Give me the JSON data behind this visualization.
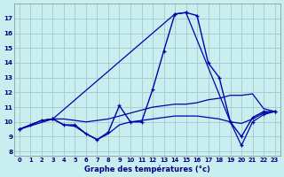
{
  "xlabel": "Graphe des températures (°c)",
  "bg_color": "#c8eef0",
  "grid_color": "#a8ced0",
  "line_color": "#0000aa",
  "x_ticks": [
    0,
    1,
    2,
    3,
    4,
    5,
    6,
    7,
    8,
    9,
    10,
    11,
    12,
    13,
    14,
    15,
    16,
    17,
    18,
    19,
    20,
    21,
    22,
    23
  ],
  "y_ticks": [
    8,
    9,
    10,
    11,
    12,
    13,
    14,
    15,
    16,
    17
  ],
  "xlim": [
    -0.5,
    23.5
  ],
  "ylim": [
    7.7,
    18.0
  ],
  "curve1_x": [
    0,
    1,
    2,
    3,
    4,
    5,
    6,
    7,
    8,
    9,
    10,
    11,
    12,
    13,
    14,
    15,
    16,
    17,
    18,
    19,
    20,
    21,
    22,
    23
  ],
  "curve1_y": [
    9.5,
    9.8,
    10.1,
    10.2,
    9.8,
    9.8,
    9.2,
    8.8,
    9.3,
    11.1,
    10.0,
    10.0,
    12.2,
    14.8,
    17.3,
    17.4,
    17.2,
    14.0,
    13.0,
    10.0,
    9.0,
    10.3,
    10.7,
    10.7
  ],
  "curve2_x": [
    0,
    1,
    2,
    3,
    4,
    5,
    6,
    7,
    8,
    9,
    10,
    11,
    12,
    13,
    14,
    15,
    16,
    17,
    18,
    19,
    20,
    21,
    22,
    23
  ],
  "curve2_y": [
    9.5,
    9.8,
    10.1,
    10.2,
    10.2,
    10.1,
    10.0,
    10.1,
    10.2,
    10.4,
    10.6,
    10.8,
    11.0,
    11.1,
    11.2,
    11.2,
    11.3,
    11.5,
    11.6,
    11.8,
    11.8,
    11.9,
    10.9,
    10.7
  ],
  "curve3_x": [
    0,
    1,
    2,
    3,
    4,
    5,
    6,
    7,
    8,
    9,
    10,
    11,
    12,
    13,
    14,
    15,
    16,
    17,
    18,
    19,
    20,
    21,
    22,
    23
  ],
  "curve3_y": [
    9.5,
    9.8,
    10.1,
    10.2,
    9.8,
    9.7,
    9.2,
    8.8,
    9.2,
    9.8,
    10.0,
    10.1,
    10.2,
    10.3,
    10.4,
    10.4,
    10.4,
    10.3,
    10.2,
    10.0,
    9.9,
    10.2,
    10.6,
    10.7
  ],
  "curve4_x": [
    0,
    3,
    14,
    15,
    19,
    20,
    21,
    22,
    23
  ],
  "curve4_y": [
    9.5,
    10.2,
    17.3,
    17.4,
    10.0,
    8.4,
    10.0,
    10.5,
    10.7
  ]
}
